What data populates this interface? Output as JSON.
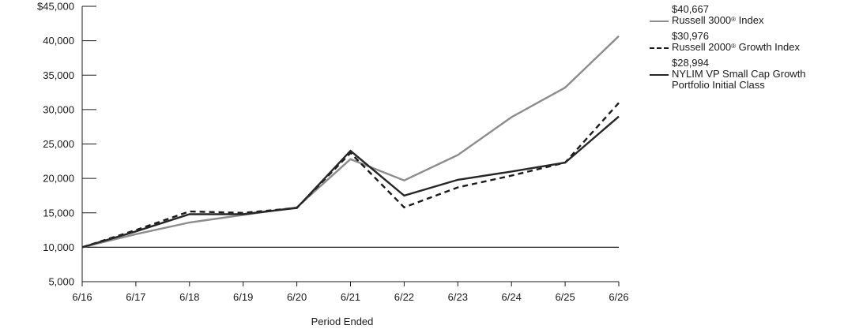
{
  "chart_data": {
    "type": "line",
    "title": "",
    "xlabel": "Period Ended",
    "ylabel": "",
    "categories": [
      "6/16",
      "6/17",
      "6/18",
      "6/19",
      "6/20",
      "6/21",
      "6/22",
      "6/23",
      "6/24",
      "6/25",
      "6/26"
    ],
    "ylim": [
      5000,
      45000
    ],
    "yticks": [
      5000,
      10000,
      15000,
      20000,
      25000,
      30000,
      35000,
      40000,
      45000
    ],
    "ytick_labels": [
      "5,000",
      "10,000",
      "15,000",
      "20,000",
      "25,000",
      "30,000",
      "35,000",
      "40,000",
      "$45,000"
    ],
    "reference_line": 10000,
    "grid": false,
    "legend_position": "right",
    "series": [
      {
        "name": "Russell 3000® Index",
        "label_text": "Russell 3000",
        "label_suffix": " Index",
        "end_value_label": "$40,667",
        "color": "#8c8c8c",
        "dash": "solid",
        "values": [
          10000,
          11900,
          13600,
          14700,
          15800,
          22800,
          19700,
          23400,
          28900,
          33200,
          40667
        ]
      },
      {
        "name": "Russell 2000® Growth Index",
        "label_text": "Russell 2000",
        "label_suffix": " Growth Index",
        "end_value_label": "$30,976",
        "color": "#1a1a1a",
        "dash": "dashed",
        "values": [
          10000,
          12500,
          15200,
          15000,
          15700,
          23700,
          15800,
          18700,
          20400,
          22300,
          30976
        ]
      },
      {
        "name": "NYLIM VP Small Cap Growth Portfolio Initial Class",
        "label_text": "NYLIM VP Small Cap Growth\nPortfolio Initial Class",
        "label_suffix": "",
        "end_value_label": "$28,994",
        "color": "#262626",
        "dash": "solid",
        "values": [
          10000,
          12300,
          14800,
          14800,
          15700,
          24000,
          17500,
          19800,
          21000,
          22300,
          28994
        ]
      }
    ]
  }
}
